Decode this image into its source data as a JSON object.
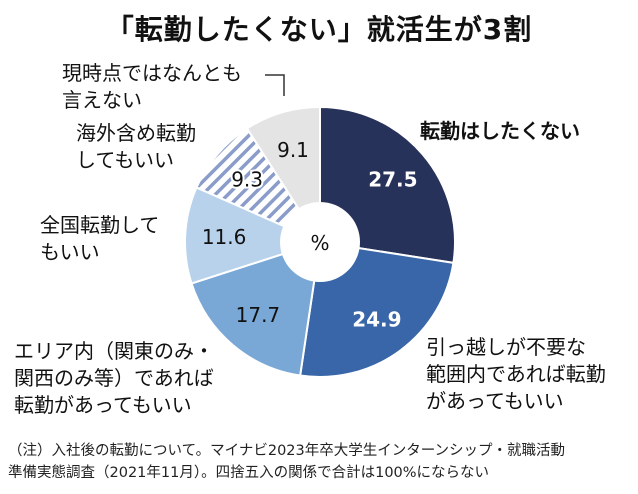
{
  "title": "「転勤したくない」就活生が3割",
  "chart_data": {
    "type": "pie",
    "unit_label": "%",
    "slices": [
      {
        "label_lines": [
          "転勤はしたくない"
        ],
        "value": 27.5,
        "value_text": "27.5",
        "color": "#27325a",
        "pattern": "solid",
        "text_color": "#ffffff"
      },
      {
        "label_lines": [
          "引っ越しが不要な",
          "範囲内であれば転勤",
          "があってもいい"
        ],
        "value": 24.9,
        "value_text": "24.9",
        "color": "#3866a8",
        "pattern": "solid",
        "text_color": "#ffffff"
      },
      {
        "label_lines": [
          "エリア内（関東のみ・",
          "関西のみ等）であれば",
          "転勤があってもいい"
        ],
        "value": 17.7,
        "value_text": "17.7",
        "color": "#7aa8d6",
        "pattern": "solid",
        "text_color": "#111111"
      },
      {
        "label_lines": [
          "全国転勤して",
          "もいい"
        ],
        "value": 11.6,
        "value_text": "11.6",
        "color": "#b8d2ec",
        "pattern": "solid",
        "text_color": "#111111"
      },
      {
        "label_lines": [
          "海外含め転勤",
          "してもいい"
        ],
        "value": 9.3,
        "value_text": "9.3",
        "color": "#8a9cc9",
        "pattern": "hatch",
        "text_color": "#111111"
      },
      {
        "label_lines": [
          "現時点ではなんとも",
          "言えない"
        ],
        "value": 9.1,
        "value_text": "9.1",
        "color": "#e4e4e4",
        "pattern": "solid",
        "text_color": "#111111"
      }
    ]
  },
  "note_lines": [
    "（注）入社後の転勤について。マイナビ2023年卒大学生インターンシップ・就職活動",
    "準備実態調査（2021年11月）。四捨五入の関係で合計は100%にならない"
  ]
}
